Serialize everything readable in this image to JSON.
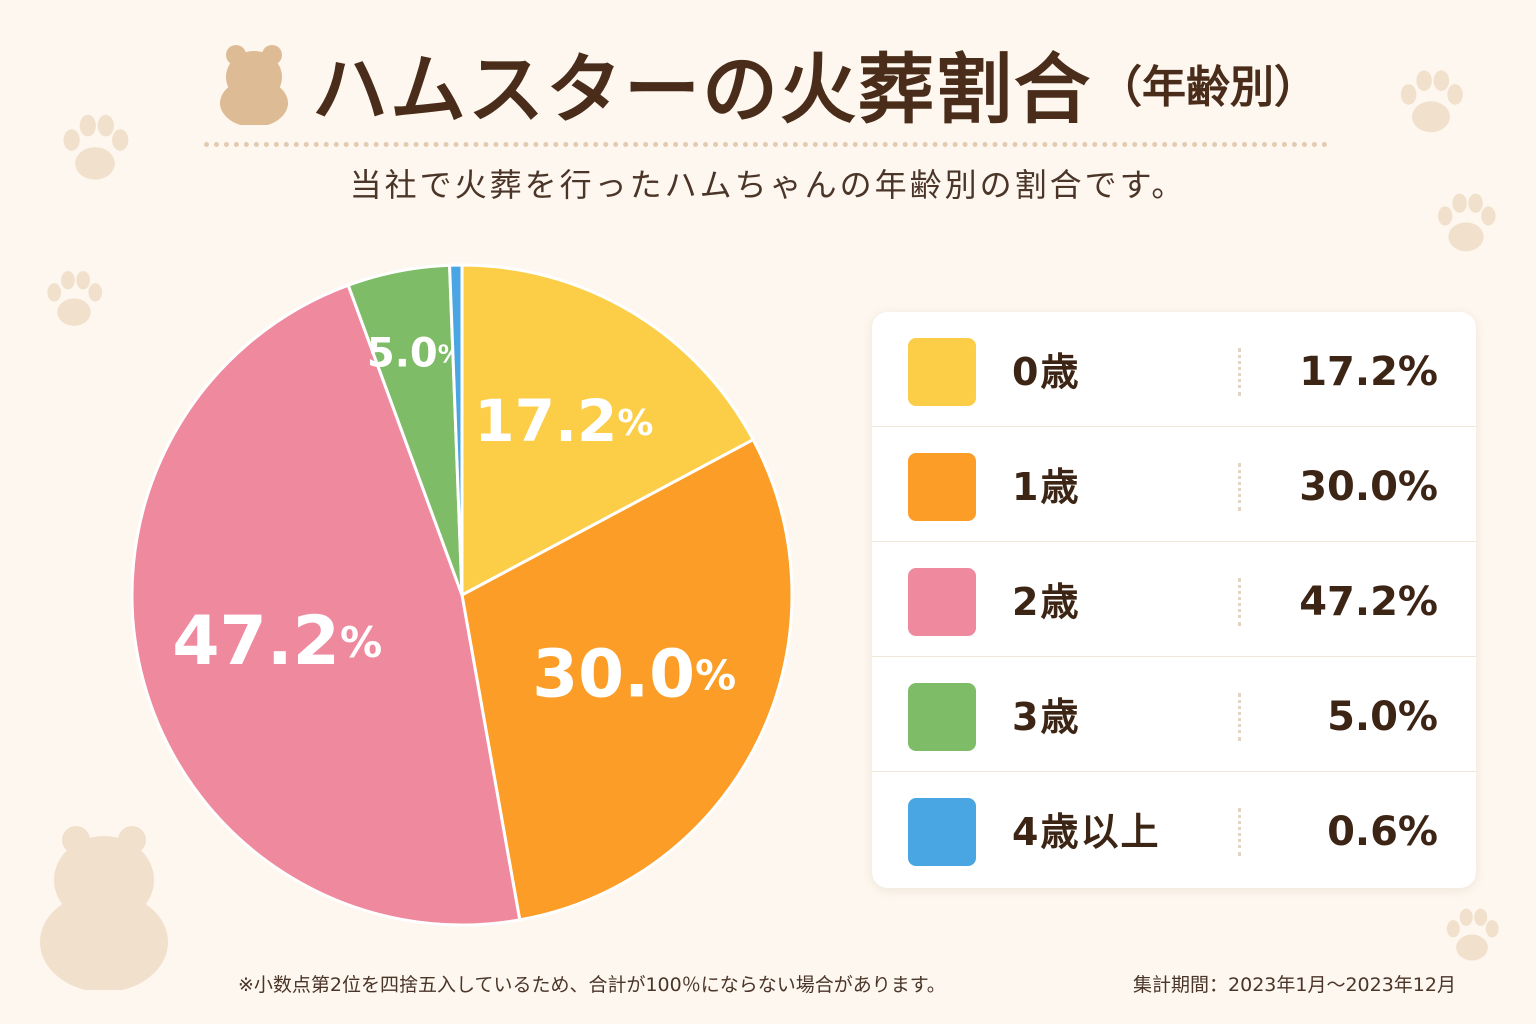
{
  "header": {
    "title": "ハムスターの火葬割合",
    "title_suffix": "（年齢別）",
    "subtitle": "当社で火葬を行ったハムちゃんの年齢別の割合です。"
  },
  "chart_data": {
    "type": "pie",
    "title": "ハムスターの火葬割合（年齢別）",
    "categories": [
      "0歳",
      "1歳",
      "2歳",
      "3歳",
      "4歳以上"
    ],
    "values": [
      17.2,
      30.0,
      47.2,
      5.0,
      0.6
    ],
    "value_labels": [
      "17.2%",
      "30.0%",
      "47.2%",
      "5.0%",
      "0.6%"
    ],
    "slice_labels_shown": [
      true,
      true,
      true,
      true,
      false
    ],
    "colors": [
      "#fccd47",
      "#fb9d27",
      "#ee899e",
      "#7fbc68",
      "#4aa6e2"
    ],
    "start_angle": "12 o'clock",
    "direction": "clockwise",
    "legend_position": "right"
  },
  "legend": {
    "items": [
      {
        "label": "0歳",
        "value": "17.2%",
        "color": "#fccd47"
      },
      {
        "label": "1歳",
        "value": "30.0%",
        "color": "#fb9d27"
      },
      {
        "label": "2歳",
        "value": "47.2%",
        "color": "#ee899e"
      },
      {
        "label": "3歳",
        "value": "5.0%",
        "color": "#7fbc68"
      },
      {
        "label": "4歳以上",
        "value": "0.6%",
        "color": "#4aa6e2"
      }
    ]
  },
  "footer": {
    "note": "※小数点第2位を四捨五入しているため、合計が100％にならない場合があります。",
    "period": "集計期間：2023年1月〜2023年12月"
  },
  "theme": {
    "background": "#fdf7ef",
    "text": "#4a2c1a",
    "decoration": "#f1e0cb",
    "hamster_icon": "#ddbb94"
  },
  "icons": {
    "title": "hamster-icon",
    "background_decor": [
      "paw-print-icon",
      "hamster-silhouette-icon"
    ]
  }
}
